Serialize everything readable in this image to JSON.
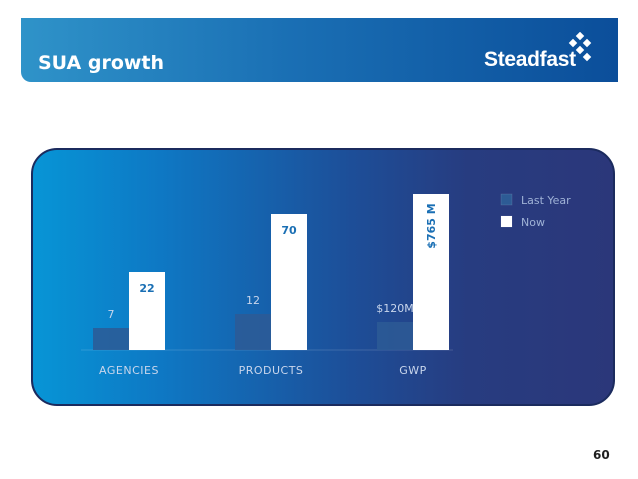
{
  "header": {
    "title": "SUA growth",
    "brand": "Steadfast"
  },
  "page_number": "60",
  "colors": {
    "last_year": "#2d5b95",
    "now": "#ffffff",
    "now_label": "#1a6fb4",
    "axis_text": "#c9d6ec"
  },
  "chart_data": {
    "type": "bar",
    "categories": [
      "AGENCIES",
      "PRODUCTS",
      "GWP"
    ],
    "series": [
      {
        "name": "Last Year",
        "values": [
          7,
          12,
          120
        ],
        "labels": [
          "7",
          "12",
          "$120M"
        ]
      },
      {
        "name": "Now",
        "values": [
          22,
          70,
          765
        ],
        "labels": [
          "22",
          "70",
          "$765 M"
        ]
      }
    ],
    "legend_position": "top-right",
    "grid": false
  }
}
